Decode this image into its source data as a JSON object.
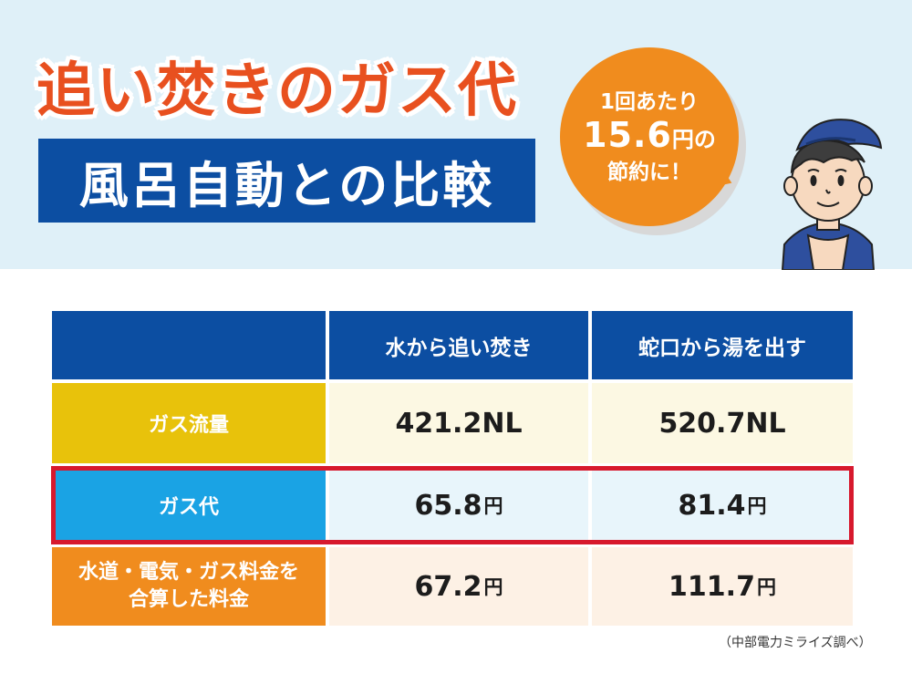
{
  "hero": {
    "title": "追い焚きのガス代",
    "subtitle": "風呂自動との比較"
  },
  "bubble": {
    "line1": "1回あたり",
    "amount": "15.6",
    "amount_unit": "円の",
    "line3": "節約に！",
    "color": "#f08c1e"
  },
  "table": {
    "columns": [
      "",
      "水から追い焚き",
      "蛇口から湯を出す"
    ],
    "rows": [
      {
        "label": "ガス流量",
        "values": [
          "421.2NL",
          "520.7NL"
        ],
        "units": [
          "",
          ""
        ],
        "label_color": "#e8c20b"
      },
      {
        "label": "ガス代",
        "values": [
          "65.8",
          "81.4"
        ],
        "units": [
          "円",
          "円"
        ],
        "label_color": "#1aa3e4",
        "highlighted": true
      },
      {
        "label_line1": "水道・電気・ガス料金を",
        "label_line2": "合算した料金",
        "values": [
          "67.2",
          "111.7"
        ],
        "units": [
          "円",
          "円"
        ],
        "label_color": "#f08c1e"
      }
    ],
    "header_color": "#0c4ea2",
    "highlight_color": "#d7192d"
  },
  "source_note": "（中部電力ミライズ調べ）"
}
